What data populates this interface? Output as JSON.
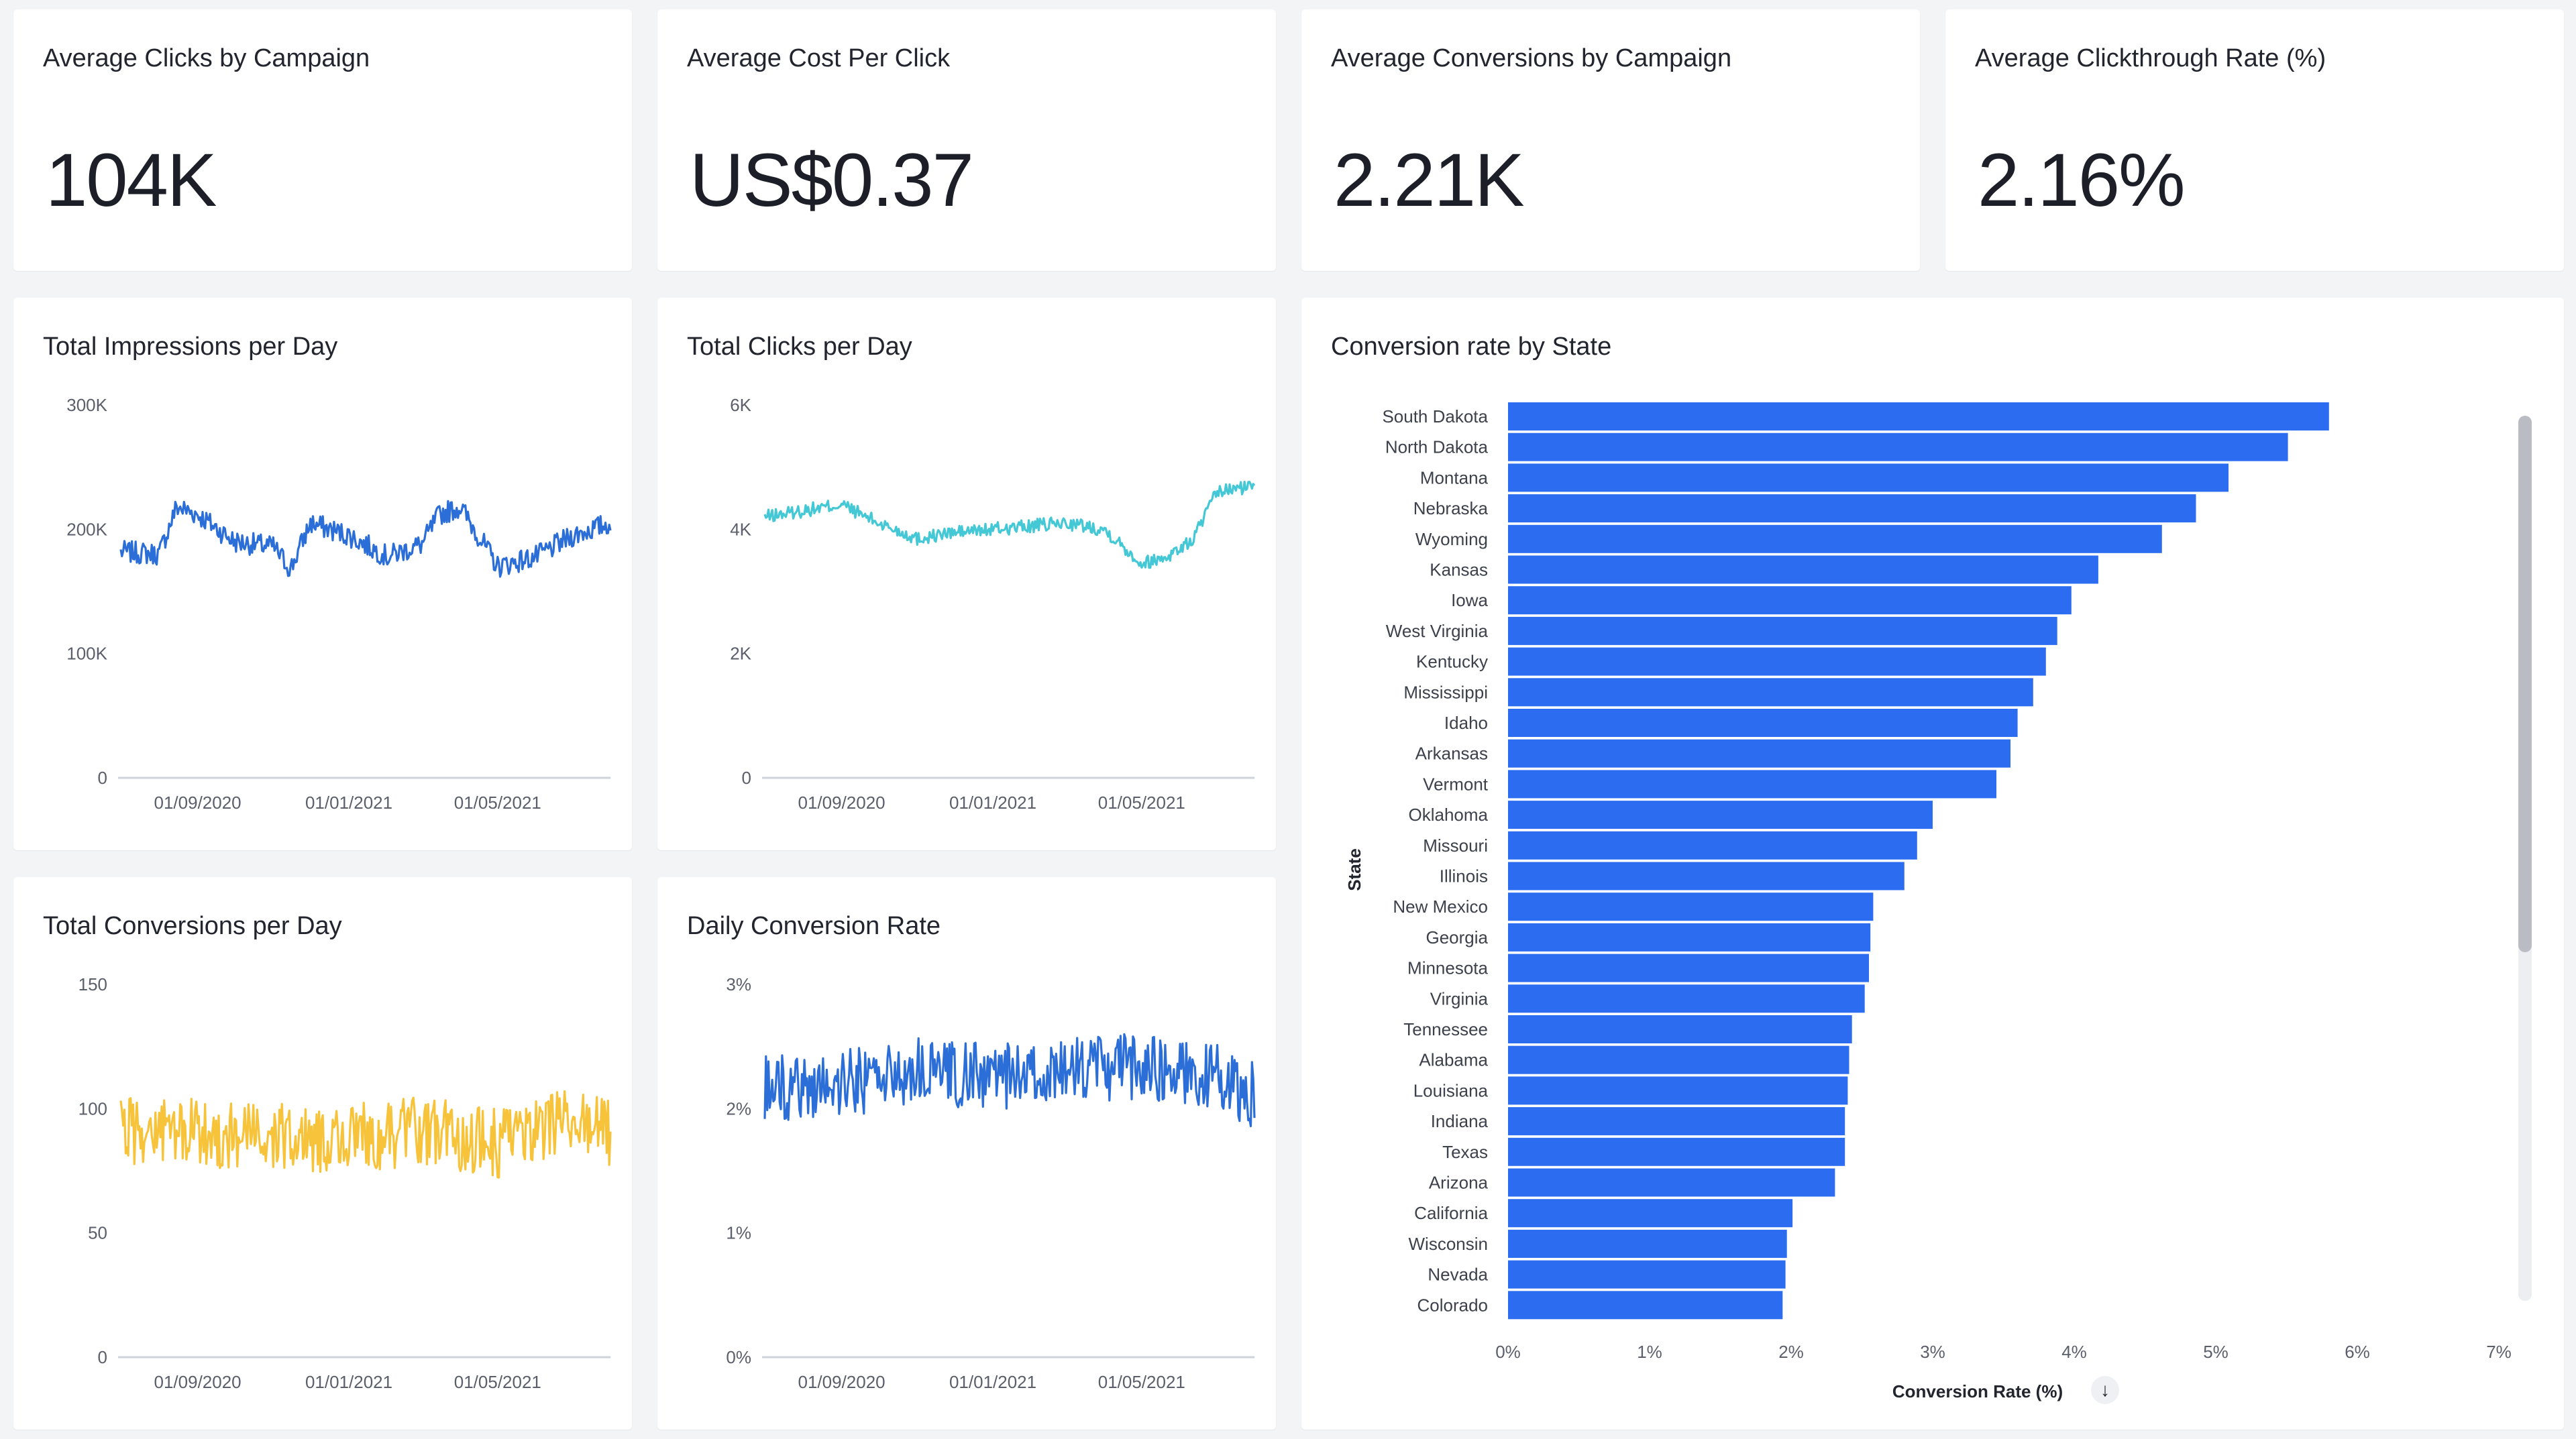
{
  "colors": {
    "impressions": "#2c6ed8",
    "clicks": "#44c8d6",
    "conversions": "#f7c33a",
    "conversion_rate": "#2c6ed8",
    "bars": "#2b6cf0",
    "axis": "#cfd2d8"
  },
  "kpis": [
    {
      "title": "Average Clicks by Campaign",
      "value": "104K"
    },
    {
      "title": "Average Cost Per Click",
      "value": "US$0.37"
    },
    {
      "title": "Average Conversions by Campaign",
      "value": "2.21K"
    },
    {
      "title": "Average Clickthrough Rate (%)",
      "value": "2.16%"
    }
  ],
  "charts": {
    "impressions": {
      "title": "Total Impressions per Day",
      "y_ticks": [
        "0",
        "100K",
        "200K",
        "300K"
      ],
      "x_ticks": [
        "01/09/2020",
        "01/01/2021",
        "01/05/2021"
      ]
    },
    "clicks": {
      "title": "Total Clicks per Day",
      "y_ticks": [
        "0",
        "2K",
        "4K",
        "6K"
      ],
      "x_ticks": [
        "01/09/2020",
        "01/01/2021",
        "01/05/2021"
      ]
    },
    "conversions": {
      "title": "Total Conversions per Day",
      "y_ticks": [
        "0",
        "50",
        "100",
        "150"
      ],
      "x_ticks": [
        "01/09/2020",
        "01/01/2021",
        "01/05/2021"
      ]
    },
    "conv_rate": {
      "title": "Daily Conversion Rate",
      "y_ticks": [
        "0%",
        "1%",
        "2%",
        "3%"
      ],
      "x_ticks": [
        "01/09/2020",
        "01/01/2021",
        "01/05/2021"
      ]
    },
    "by_state": {
      "title": "Conversion rate by State",
      "x_ticks": [
        "0%",
        "1%",
        "2%",
        "3%",
        "4%",
        "5%",
        "6%",
        "7%"
      ],
      "xlabel": "Conversion Rate (%)",
      "ylabel": "State",
      "sort_icon": "sort-descending-icon"
    }
  },
  "chart_data": [
    {
      "type": "line",
      "title": "Total Impressions per Day",
      "ylim": [
        0,
        300000
      ],
      "x_range": [
        "2020-07-01",
        "2021-07-31"
      ],
      "series": [
        {
          "x": [
            "2020-07-01",
            "2020-08-01",
            "2020-08-15",
            "2020-09-01",
            "2020-10-01",
            "2020-11-01",
            "2020-11-15",
            "2020-12-01",
            "2021-01-01",
            "2021-02-01",
            "2021-03-01",
            "2021-03-15",
            "2021-04-01",
            "2021-05-01",
            "2021-06-01",
            "2021-07-01",
            "2021-07-31"
          ],
          "values": [
            182000,
            180000,
            218000,
            212000,
            190000,
            186000,
            168000,
            205000,
            195000,
            178000,
            188000,
            212000,
            218000,
            170000,
            178000,
            195000,
            205000
          ]
        }
      ]
    },
    {
      "type": "line",
      "title": "Total Clicks per Day",
      "ylim": [
        0,
        6000
      ],
      "x_range": [
        "2020-07-01",
        "2021-07-31"
      ],
      "series": [
        {
          "x": [
            "2020-07-01",
            "2020-08-01",
            "2020-09-01",
            "2020-10-01",
            "2020-11-01",
            "2020-12-01",
            "2021-01-01",
            "2021-02-01",
            "2021-03-01",
            "2021-04-01",
            "2021-05-01",
            "2021-05-20",
            "2021-06-10",
            "2021-07-01",
            "2021-07-31"
          ],
          "values": [
            4200,
            4300,
            4400,
            4100,
            3850,
            3950,
            4000,
            4050,
            4100,
            4000,
            3450,
            3550,
            3800,
            4600,
            4700
          ]
        }
      ]
    },
    {
      "type": "line",
      "title": "Total Conversions per Day",
      "ylim": [
        0,
        150
      ],
      "x_range": [
        "2020-07-01",
        "2021-07-31"
      ],
      "series": [
        {
          "x": [
            "2020-07-01",
            "2020-09-01",
            "2020-11-01",
            "2021-01-01",
            "2021-03-01",
            "2021-05-01",
            "2021-07-01",
            "2021-07-31"
          ],
          "values": [
            92,
            90,
            88,
            88,
            91,
            86,
            95,
            90
          ]
        }
      ]
    },
    {
      "type": "line",
      "title": "Daily Conversion Rate",
      "ylim": [
        0,
        3
      ],
      "x_range": [
        "2020-07-01",
        "2021-07-31"
      ],
      "series": [
        {
          "x": [
            "2020-07-01",
            "2020-09-01",
            "2020-11-01",
            "2021-01-01",
            "2021-03-01",
            "2021-05-01",
            "2021-07-01",
            "2021-07-31"
          ],
          "values": [
            2.15,
            2.2,
            2.3,
            2.25,
            2.3,
            2.35,
            2.25,
            2.1
          ]
        }
      ]
    },
    {
      "type": "bar",
      "orientation": "horizontal",
      "title": "Conversion rate by State",
      "xlabel": "Conversion Rate (%)",
      "ylabel": "State",
      "xlim": [
        0,
        7
      ],
      "categories": [
        "South Dakota",
        "North Dakota",
        "Montana",
        "Nebraska",
        "Wyoming",
        "Kansas",
        "Iowa",
        "West Virginia",
        "Kentucky",
        "Mississippi",
        "Idaho",
        "Arkansas",
        "Vermont",
        "Oklahoma",
        "Missouri",
        "Illinois",
        "New Mexico",
        "Georgia",
        "Minnesota",
        "Virginia",
        "Tennessee",
        "Alabama",
        "Louisiana",
        "Indiana",
        "Texas",
        "Arizona",
        "California",
        "Wisconsin",
        "Nevada",
        "Colorado"
      ],
      "values": [
        5.8,
        5.51,
        5.09,
        4.86,
        4.62,
        4.17,
        3.98,
        3.88,
        3.8,
        3.71,
        3.6,
        3.55,
        3.45,
        3.0,
        2.89,
        2.8,
        2.58,
        2.56,
        2.55,
        2.52,
        2.43,
        2.41,
        2.4,
        2.38,
        2.38,
        2.31,
        2.01,
        1.97,
        1.96,
        1.94
      ]
    }
  ]
}
